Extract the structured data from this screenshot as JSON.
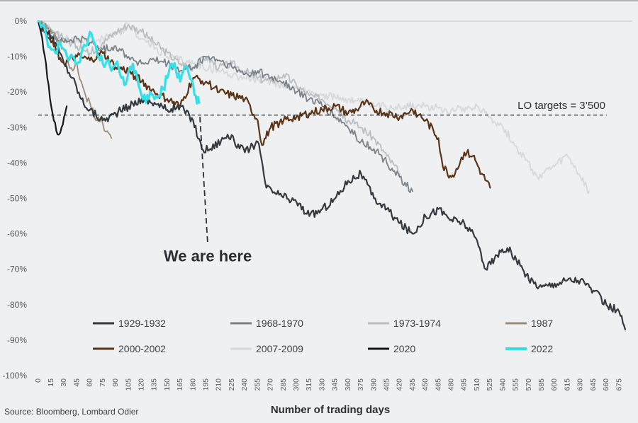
{
  "chart_data": {
    "type": "line",
    "title": "",
    "xlabel": "Number of trading days",
    "ylabel": "",
    "xlim": [
      0,
      682
    ],
    "ylim": [
      -100,
      0
    ],
    "x_ticks": [
      0,
      15,
      30,
      45,
      60,
      75,
      90,
      105,
      120,
      135,
      150,
      165,
      180,
      195,
      210,
      225,
      240,
      255,
      270,
      285,
      300,
      315,
      330,
      345,
      360,
      375,
      390,
      405,
      420,
      435,
      450,
      465,
      480,
      495,
      510,
      525,
      540,
      555,
      570,
      585,
      600,
      615,
      630,
      645,
      660,
      675
    ],
    "y_ticks": [
      0,
      -10,
      -20,
      -30,
      -40,
      -50,
      -60,
      -70,
      -80,
      -90,
      -100
    ],
    "y_tick_labels": [
      "0%",
      "-10%",
      "-20%",
      "-30%",
      "-40%",
      "-50%",
      "-60%",
      "-70%",
      "-80%",
      "-90%",
      "-100%"
    ],
    "grid": false,
    "reference_line": {
      "y": -26.5,
      "label": "LO targets = 3’500",
      "style": "dashed"
    },
    "annotation": {
      "label": "We are here",
      "x": 187,
      "pointer_from_y": -27,
      "pointer_to_y": -63
    },
    "legend_position": "bottom",
    "series": [
      {
        "name": "1929-1932",
        "color": "#33393e",
        "width": 2.2,
        "x": [
          0,
          10,
          20,
          30,
          40,
          50,
          60,
          75,
          90,
          105,
          120,
          135,
          150,
          165,
          180,
          190,
          200,
          220,
          240,
          255,
          265,
          280,
          300,
          315,
          330,
          345,
          360,
          375,
          390,
          405,
          420,
          435,
          450,
          465,
          480,
          495,
          510,
          520,
          530,
          545,
          560,
          570,
          585,
          600,
          615,
          630,
          645,
          660,
          675,
          682
        ],
        "y": [
          0,
          -3,
          -6,
          -12,
          -16,
          -22,
          -25,
          -28,
          -26,
          -24,
          -22,
          -23,
          -25,
          -24,
          -28,
          -36,
          -36,
          -32,
          -37,
          -34,
          -47,
          -49,
          -51,
          -55,
          -53,
          -50,
          -45,
          -43,
          -50,
          -53,
          -57,
          -60,
          -55,
          -53,
          -56,
          -57,
          -62,
          -70,
          -67,
          -64,
          -69,
          -73,
          -75,
          -74,
          -73,
          -73,
          -76,
          -80,
          -82,
          -87
        ]
      },
      {
        "name": "1968-1970",
        "color": "#7b8288",
        "width": 1.8,
        "x": [
          0,
          15,
          30,
          45,
          60,
          75,
          90,
          105,
          120,
          135,
          150,
          165,
          180,
          195,
          210,
          225,
          240,
          255,
          270,
          285,
          300,
          315,
          330,
          345,
          360,
          375,
          390,
          405,
          420,
          435
        ],
        "y": [
          0,
          -4,
          -6,
          -5,
          -6,
          -8,
          -7,
          -10,
          -12,
          -11,
          -12,
          -14,
          -13,
          -10,
          -11,
          -13,
          -15,
          -14,
          -16,
          -17,
          -20,
          -22,
          -24,
          -27,
          -30,
          -34,
          -36,
          -40,
          -44,
          -48
        ]
      },
      {
        "name": "1973-1974",
        "color": "#b9bec2",
        "width": 1.8,
        "x": [
          0,
          15,
          30,
          45,
          60,
          75,
          90,
          105,
          120,
          135,
          150,
          165,
          180,
          195,
          210,
          225,
          240,
          255,
          270,
          285,
          300,
          315,
          330,
          345,
          360,
          375,
          390,
          405,
          420
        ],
        "y": [
          0,
          -3,
          -5,
          -7,
          -9,
          -6,
          -3,
          -1,
          -3,
          -6,
          -9,
          -12,
          -13,
          -10,
          -13,
          -12,
          -14,
          -16,
          -17,
          -15,
          -18,
          -21,
          -22,
          -24,
          -28,
          -30,
          -33,
          -38,
          -43
        ]
      },
      {
        "name": "1987",
        "color": "#a08b78",
        "width": 1.8,
        "x": [
          0,
          10,
          20,
          30,
          35,
          40,
          45,
          50,
          55,
          60,
          65,
          70,
          75,
          80,
          85
        ],
        "y": [
          0,
          -2,
          -4,
          -8,
          -12,
          -14,
          -12,
          -17,
          -21,
          -23,
          -27,
          -27,
          -29,
          -31,
          -33
        ]
      },
      {
        "name": "2000-2002",
        "color": "#5b3417",
        "width": 2.2,
        "x": [
          0,
          15,
          30,
          45,
          60,
          75,
          90,
          105,
          120,
          135,
          150,
          165,
          180,
          195,
          210,
          225,
          240,
          255,
          260,
          270,
          285,
          300,
          315,
          330,
          345,
          360,
          370,
          380,
          390,
          405,
          420,
          435,
          450,
          465,
          470,
          480,
          490,
          495,
          505,
          515,
          525
        ],
        "y": [
          0,
          -6,
          -12,
          -10,
          -11,
          -9,
          -13,
          -14,
          -17,
          -20,
          -22,
          -24,
          -16,
          -17,
          -20,
          -21,
          -22,
          -28,
          -35,
          -30,
          -28,
          -27,
          -26,
          -25,
          -24,
          -26,
          -25,
          -23,
          -25,
          -26,
          -27,
          -25,
          -28,
          -33,
          -41,
          -44,
          -40,
          -37,
          -38,
          -43,
          -47
        ]
      },
      {
        "name": "2007-2009",
        "color": "#d6d8da",
        "width": 1.8,
        "x": [
          0,
          30,
          60,
          90,
          105,
          120,
          150,
          180,
          210,
          240,
          270,
          300,
          330,
          360,
          390,
          420,
          450,
          480,
          510,
          540,
          560,
          580,
          600,
          615,
          630,
          640
        ],
        "y": [
          0,
          -5,
          -6,
          -4,
          -1,
          -5,
          -10,
          -12,
          -14,
          -16,
          -17,
          -19,
          -21,
          -22,
          -24,
          -24,
          -24,
          -25,
          -24,
          -30,
          -37,
          -44,
          -41,
          -38,
          -44,
          -48
        ]
      },
      {
        "name": "2020",
        "color": "#15181b",
        "width": 2.2,
        "x": [
          0,
          3,
          6,
          9,
          12,
          15,
          18,
          21,
          24,
          27,
          30,
          33
        ],
        "y": [
          0,
          -3,
          -8,
          -12,
          -18,
          -24,
          -28,
          -31,
          -32,
          -30,
          -27,
          -24
        ]
      },
      {
        "name": "2022",
        "color": "#35e0e8",
        "width": 3.2,
        "x": [
          0,
          5,
          10,
          15,
          20,
          25,
          30,
          35,
          40,
          45,
          50,
          55,
          60,
          65,
          70,
          75,
          80,
          85,
          90,
          95,
          100,
          105,
          110,
          115,
          120,
          125,
          130,
          135,
          140,
          145,
          150,
          155,
          160,
          165,
          170,
          175,
          180,
          183,
          187
        ],
        "y": [
          0,
          -1,
          -5,
          -8,
          -9,
          -6,
          -8,
          -11,
          -10,
          -12,
          -9,
          -7,
          -3,
          -6,
          -10,
          -12,
          -11,
          -14,
          -12,
          -15,
          -18,
          -14,
          -12,
          -16,
          -21,
          -23,
          -20,
          -22,
          -21,
          -19,
          -16,
          -12,
          -14,
          -17,
          -13,
          -15,
          -18,
          -21,
          -23
        ]
      }
    ]
  },
  "source": "Source: Bloomberg, Lombard Odier"
}
